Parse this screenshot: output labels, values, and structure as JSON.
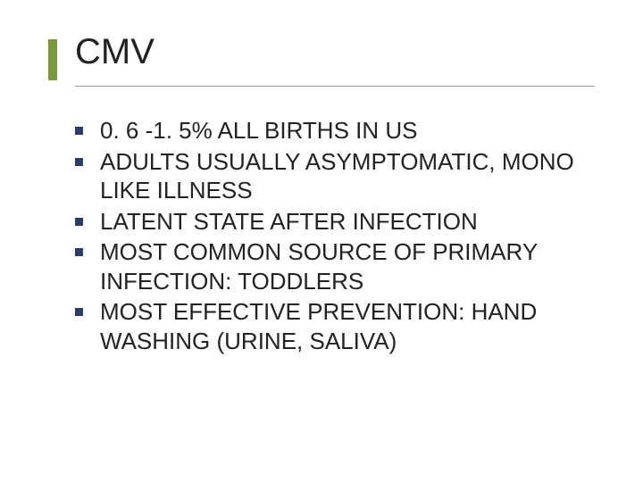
{
  "slide": {
    "title": "CMV",
    "title_fontsize": 40,
    "title_color": "#222222",
    "accent_color": "#7a9a3a",
    "underline_color": "#999999",
    "background_color": "#ffffff",
    "bullets": [
      "0. 6 -1. 5% ALL BIRTHS IN US",
      "ADULTS USUALLY ASYMPTOMATIC, MONO LIKE ILLNESS",
      "LATENT STATE AFTER INFECTION",
      "MOST COMMON SOURCE OF PRIMARY INFECTION: TODDLERS",
      "MOST EFFECTIVE PREVENTION: HAND WASHING (URINE, SALIVA)"
    ],
    "bullet_fontsize": 26,
    "bullet_color": "#222222",
    "bullet_marker_color": "#2e3a66",
    "bullet_marker_size": 9,
    "font_family": "Verdana, Arial, sans-serif"
  }
}
